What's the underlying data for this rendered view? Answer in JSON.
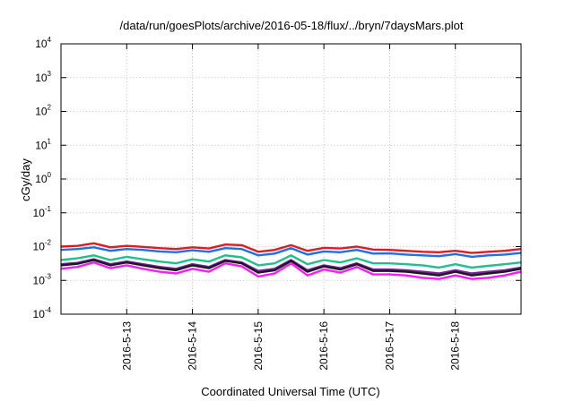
{
  "chart_data": {
    "type": "line",
    "title": "/data/run/goesPlots/archive/2016-05-18/flux/../bryn/7daysMars.plot",
    "xlabel": "Coordinated Universal Time (UTC)",
    "ylabel": "cGy/day",
    "y_scale": "log",
    "ylim": [
      0.0001,
      10000
    ],
    "y_ticks": [
      {
        "base": "10",
        "exp": "-4",
        "value": 0.0001
      },
      {
        "base": "10",
        "exp": "-3",
        "value": 0.001
      },
      {
        "base": "10",
        "exp": "-2",
        "value": 0.01
      },
      {
        "base": "10",
        "exp": "-1",
        "value": 0.1
      },
      {
        "base": "10",
        "exp": "0",
        "value": 1
      },
      {
        "base": "10",
        "exp": "1",
        "value": 10
      },
      {
        "base": "10",
        "exp": "2",
        "value": 100
      },
      {
        "base": "10",
        "exp": "3",
        "value": 1000
      },
      {
        "base": "10",
        "exp": "4",
        "value": 10000
      }
    ],
    "xlim": [
      "2016-05-12T00:00",
      "2016-05-19T00:00"
    ],
    "x_ticks": [
      {
        "label": "2016-5-13",
        "value": "2016-05-13T00:00"
      },
      {
        "label": "2016-5-14",
        "value": "2016-05-14T00:00"
      },
      {
        "label": "2016-5-15",
        "value": "2016-05-15T00:00"
      },
      {
        "label": "2016-5-16",
        "value": "2016-05-16T00:00"
      },
      {
        "label": "2016-5-17",
        "value": "2016-05-17T00:00"
      },
      {
        "label": "2016-5-18",
        "value": "2016-05-18T00:00"
      }
    ],
    "grid": true,
    "x": [
      "2016-05-12T00:00",
      "2016-05-12T06:00",
      "2016-05-12T12:00",
      "2016-05-12T18:00",
      "2016-05-13T00:00",
      "2016-05-13T06:00",
      "2016-05-13T12:00",
      "2016-05-13T18:00",
      "2016-05-14T00:00",
      "2016-05-14T06:00",
      "2016-05-14T12:00",
      "2016-05-14T18:00",
      "2016-05-15T00:00",
      "2016-05-15T06:00",
      "2016-05-15T12:00",
      "2016-05-15T18:00",
      "2016-05-16T00:00",
      "2016-05-16T06:00",
      "2016-05-16T12:00",
      "2016-05-16T18:00",
      "2016-05-17T00:00",
      "2016-05-17T06:00",
      "2016-05-17T12:00",
      "2016-05-17T18:00",
      "2016-05-18T00:00",
      "2016-05-18T06:00",
      "2016-05-18T12:00",
      "2016-05-18T18:00",
      "2016-05-19T00:00"
    ],
    "series": [
      {
        "color": "#e41a1c",
        "values": [
          0.01,
          0.0105,
          0.0125,
          0.0095,
          0.0105,
          0.0098,
          0.009,
          0.0085,
          0.0095,
          0.0088,
          0.0115,
          0.011,
          0.007,
          0.008,
          0.011,
          0.0075,
          0.0092,
          0.0088,
          0.01,
          0.0082,
          0.008,
          0.0075,
          0.007,
          0.0068,
          0.0075,
          0.0065,
          0.007,
          0.0075,
          0.0085
        ]
      },
      {
        "color": "#1f6fe8",
        "values": [
          0.008,
          0.0085,
          0.0095,
          0.0075,
          0.0085,
          0.008,
          0.0072,
          0.0068,
          0.0078,
          0.007,
          0.009,
          0.0085,
          0.0055,
          0.0062,
          0.009,
          0.0058,
          0.0072,
          0.0068,
          0.008,
          0.0062,
          0.0063,
          0.0058,
          0.0055,
          0.0052,
          0.006,
          0.005,
          0.0055,
          0.0058,
          0.0065
        ]
      },
      {
        "color": "#20c08a",
        "values": [
          0.004,
          0.0045,
          0.0055,
          0.004,
          0.005,
          0.0042,
          0.0036,
          0.0032,
          0.0042,
          0.0036,
          0.0055,
          0.0048,
          0.0028,
          0.0032,
          0.0055,
          0.003,
          0.004,
          0.0034,
          0.0045,
          0.0032,
          0.0032,
          0.003,
          0.0028,
          0.0024,
          0.003,
          0.0024,
          0.0027,
          0.003,
          0.0034
        ]
      },
      {
        "color": "#7a1fa2",
        "values": [
          0.003,
          0.0033,
          0.0042,
          0.003,
          0.0036,
          0.003,
          0.0025,
          0.0022,
          0.003,
          0.0025,
          0.004,
          0.0034,
          0.0019,
          0.0022,
          0.004,
          0.002,
          0.0028,
          0.0023,
          0.0032,
          0.0021,
          0.0021,
          0.002,
          0.0018,
          0.0016,
          0.002,
          0.0016,
          0.0018,
          0.002,
          0.0024
        ]
      },
      {
        "color": "#1a1a1a",
        "values": [
          0.0028,
          0.0031,
          0.004,
          0.0028,
          0.0034,
          0.0028,
          0.0023,
          0.002,
          0.0028,
          0.0023,
          0.0038,
          0.0032,
          0.0017,
          0.002,
          0.0038,
          0.0018,
          0.0026,
          0.0021,
          0.003,
          0.0019,
          0.0019,
          0.0018,
          0.0016,
          0.0014,
          0.0018,
          0.0014,
          0.0016,
          0.0018,
          0.0022
        ]
      },
      {
        "color": "#ff1aff",
        "values": [
          0.0022,
          0.0025,
          0.0034,
          0.0023,
          0.0028,
          0.0022,
          0.0018,
          0.0016,
          0.0022,
          0.0018,
          0.0032,
          0.0026,
          0.0013,
          0.0016,
          0.0032,
          0.0014,
          0.0021,
          0.0017,
          0.0025,
          0.0015,
          0.0015,
          0.0014,
          0.0012,
          0.0011,
          0.0014,
          0.0011,
          0.0012,
          0.0014,
          0.0018
        ]
      }
    ]
  }
}
